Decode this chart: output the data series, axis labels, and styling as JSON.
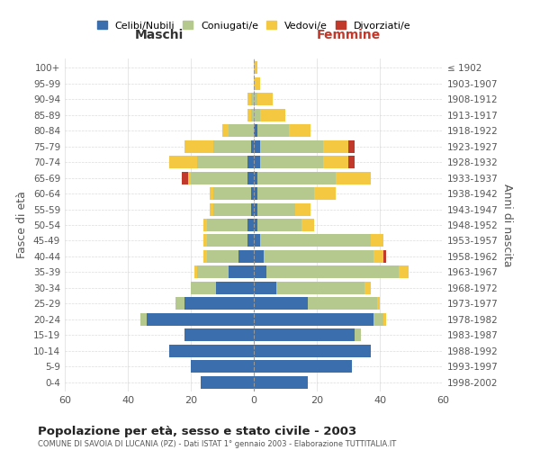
{
  "age_groups": [
    "0-4",
    "5-9",
    "10-14",
    "15-19",
    "20-24",
    "25-29",
    "30-34",
    "35-39",
    "40-44",
    "45-49",
    "50-54",
    "55-59",
    "60-64",
    "65-69",
    "70-74",
    "75-79",
    "80-84",
    "85-89",
    "90-94",
    "95-99",
    "100+"
  ],
  "birth_years": [
    "1998-2002",
    "1993-1997",
    "1988-1992",
    "1983-1987",
    "1978-1982",
    "1973-1977",
    "1968-1972",
    "1963-1967",
    "1958-1962",
    "1953-1957",
    "1948-1952",
    "1943-1947",
    "1938-1942",
    "1933-1937",
    "1928-1932",
    "1923-1927",
    "1918-1922",
    "1913-1917",
    "1908-1912",
    "1903-1907",
    "≤ 1902"
  ],
  "maschi": {
    "celibe": [
      17,
      20,
      27,
      22,
      34,
      22,
      12,
      8,
      5,
      2,
      2,
      1,
      1,
      2,
      2,
      1,
      0,
      0,
      0,
      0,
      0
    ],
    "coniugato": [
      0,
      0,
      0,
      0,
      2,
      3,
      8,
      10,
      10,
      13,
      13,
      12,
      12,
      18,
      16,
      12,
      8,
      1,
      1,
      0,
      0
    ],
    "vedovo": [
      0,
      0,
      0,
      0,
      0,
      0,
      0,
      1,
      1,
      1,
      1,
      1,
      1,
      1,
      9,
      9,
      2,
      1,
      1,
      0,
      0
    ],
    "divorziato": [
      0,
      0,
      0,
      0,
      0,
      0,
      0,
      0,
      0,
      0,
      0,
      0,
      0,
      2,
      0,
      0,
      0,
      0,
      0,
      0,
      0
    ]
  },
  "femmine": {
    "nubile": [
      17,
      31,
      37,
      32,
      38,
      17,
      7,
      4,
      3,
      2,
      1,
      1,
      1,
      1,
      2,
      2,
      1,
      0,
      0,
      0,
      0
    ],
    "coniugata": [
      0,
      0,
      0,
      2,
      3,
      22,
      28,
      42,
      35,
      35,
      14,
      12,
      18,
      25,
      20,
      20,
      10,
      2,
      1,
      0,
      0
    ],
    "vedova": [
      0,
      0,
      0,
      0,
      1,
      1,
      2,
      3,
      3,
      4,
      4,
      5,
      7,
      11,
      8,
      8,
      7,
      8,
      5,
      2,
      1
    ],
    "divorziata": [
      0,
      0,
      0,
      0,
      0,
      0,
      0,
      0,
      1,
      0,
      0,
      0,
      0,
      0,
      2,
      2,
      0,
      0,
      0,
      0,
      0
    ]
  },
  "colors": {
    "celibe": "#3a6eac",
    "coniugato": "#b5c98e",
    "vedovo": "#f5c842",
    "divorziato": "#c0392b"
  },
  "xlim": 60,
  "title": "Popolazione per età, sesso e stato civile - 2003",
  "subtitle": "COMUNE DI SAVOIA DI LUCANIA (PZ) - Dati ISTAT 1° gennaio 2003 - Elaborazione TUTTITALIA.IT",
  "xlabel_left": "Maschi",
  "xlabel_right": "Femmine",
  "ylabel_left": "Fasce di età",
  "ylabel_right": "Anni di nascita",
  "legend_labels": [
    "Celibi/Nubili",
    "Coniugati/e",
    "Vedovi/e",
    "Divorziati/e"
  ],
  "background_color": "#ffffff",
  "grid_color": "#cccccc"
}
